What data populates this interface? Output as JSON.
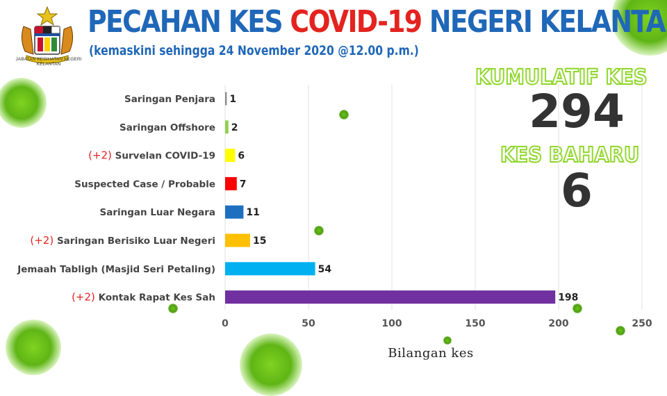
{
  "header": {
    "title_part1": "PECAHAN KES",
    "title_part2": "COVID-19",
    "title_part3": "NEGERI KELANTAN",
    "subtitle": "(kemaskini sehingga 24 November 2020 @12.00 p.m.)",
    "logo_caption": "JABATAN KESIHATAN NEGERI KELANTAN"
  },
  "summary": {
    "cumulative_label": "KUMULATIF KES",
    "cumulative_value": "294",
    "new_label": "KES BAHARU",
    "new_value": "6"
  },
  "colors": {
    "title_blue": "#1f67b8",
    "title_red": "#e4231f",
    "accent_green": "#8fd62c"
  },
  "chart_data": {
    "type": "bar",
    "orientation": "horizontal",
    "categories": [
      {
        "label": "Saringan Penjara",
        "prefix": ""
      },
      {
        "label": "Saringan Offshore",
        "prefix": ""
      },
      {
        "label": "Survelan COVID-19",
        "prefix": "(+2)"
      },
      {
        "label": "Suspected Case / Probable",
        "prefix": ""
      },
      {
        "label": "Saringan Luar Negara",
        "prefix": ""
      },
      {
        "label": "Saringan Berisiko Luar Negeri",
        "prefix": "(+2)"
      },
      {
        "label": "Jemaah Tabligh (Masjid Seri Petaling)",
        "prefix": ""
      },
      {
        "label": "Kontak Rapat Kes Sah",
        "prefix": "(+2)"
      }
    ],
    "values": [
      1,
      2,
      6,
      7,
      11,
      15,
      54,
      198
    ],
    "bar_colors": [
      "#8c8c8c",
      "#92d050",
      "#ffff00",
      "#ff0000",
      "#1f6fc0",
      "#ffc000",
      "#00b0f0",
      "#7030a0"
    ],
    "xlim": [
      0,
      250
    ],
    "xticks": [
      "0",
      "50",
      "100",
      "150",
      "200",
      "250"
    ],
    "xlabel": "Bilangan kes",
    "grid": true
  }
}
